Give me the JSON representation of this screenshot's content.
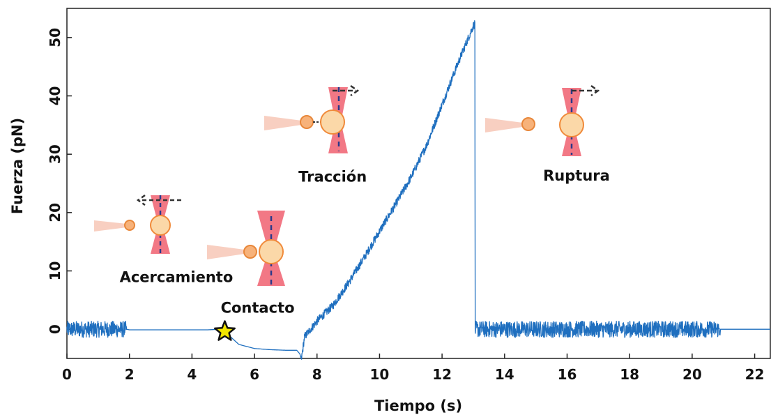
{
  "chart_data": {
    "type": "line",
    "xlabel": "Tiempo (s)",
    "ylabel": "Fuerza (pN)",
    "xlim": [
      0,
      22.5
    ],
    "ylim": [
      -5,
      55
    ],
    "xticks": [
      0,
      2,
      4,
      6,
      8,
      10,
      12,
      14,
      16,
      18,
      20,
      22
    ],
    "yticks": [
      0,
      10,
      20,
      30,
      40,
      50
    ],
    "grid": false,
    "line_color": "#1f6fbf",
    "series": [
      {
        "points": [
          [
            0,
            0
          ],
          [
            1.9,
            0
          ],
          [
            2.0,
            -0.1
          ],
          [
            3.5,
            -0.1
          ],
          [
            4.5,
            -0.1
          ],
          [
            4.9,
            0
          ],
          [
            5.05,
            -0.4
          ],
          [
            5.5,
            -2.6
          ],
          [
            6.0,
            -3.3
          ],
          [
            6.5,
            -3.5
          ],
          [
            7.0,
            -3.6
          ],
          [
            7.35,
            -3.6
          ],
          [
            7.45,
            -4.2
          ],
          [
            7.5,
            -5.2
          ],
          [
            7.6,
            -1.3
          ],
          [
            8.0,
            1.4
          ],
          [
            8.5,
            4.0
          ],
          [
            9.0,
            7.9
          ],
          [
            9.5,
            12.2
          ],
          [
            10.0,
            16.8
          ],
          [
            10.5,
            21.3
          ],
          [
            11.0,
            26.0
          ],
          [
            11.5,
            31.5
          ],
          [
            12.0,
            38.5
          ],
          [
            12.5,
            45.5
          ],
          [
            13.0,
            52.0
          ],
          [
            13.05,
            52.4
          ],
          [
            13.06,
            0
          ],
          [
            20.9,
            0
          ],
          [
            22.5,
            0
          ]
        ],
        "noisy_ranges": [
          [
            0,
            1.9,
            1.4
          ],
          [
            13.06,
            20.9,
            1.4
          ],
          [
            7.5,
            13.05,
            0.7
          ]
        ]
      }
    ],
    "annotations": [
      {
        "text": "Acercamiento",
        "x": 3.5,
        "y": 8.1
      },
      {
        "text": "Contacto",
        "x": 6.1,
        "y": 2.8
      },
      {
        "text": "Tracción",
        "x": 8.5,
        "y": 25.3
      },
      {
        "text": "Ruptura",
        "x": 16.3,
        "y": 25.5
      }
    ],
    "contact_marker": {
      "x": 5.05,
      "y": -0.4,
      "color": "#f2e600"
    }
  }
}
